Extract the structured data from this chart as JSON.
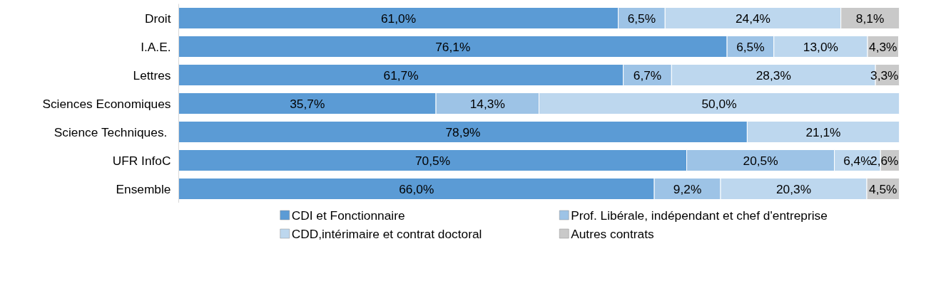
{
  "chart_data": {
    "type": "bar",
    "orientation": "horizontal",
    "stacked": true,
    "categories": [
      "Droit",
      "I.A.E.",
      "Lettres",
      "Sciences Economiques",
      "Science  Techniques.",
      "UFR InfoC",
      "Ensemble"
    ],
    "xlim": [
      0,
      100
    ],
    "tick_labels": "y",
    "grid": false,
    "legend": "bottom",
    "series": [
      {
        "name": "CDI et Fonctionnaire",
        "color": "#5b9bd5",
        "values": [
          61.0,
          76.1,
          61.7,
          35.7,
          78.9,
          70.5,
          66.0
        ],
        "value_labels": [
          "61,0%",
          "76,1%",
          "61,7%",
          "35,7%",
          "78,9%",
          "70,5%",
          "66,0%"
        ]
      },
      {
        "name": "Prof. Libérale, indépendant et chef d'entreprise",
        "color": "#9dc3e6",
        "values": [
          6.5,
          6.5,
          6.7,
          14.3,
          null,
          20.5,
          9.2
        ],
        "value_labels": [
          "6,5%",
          "6,5%",
          "6,7%",
          "14,3%",
          null,
          "20,5%",
          "9,2%"
        ]
      },
      {
        "name": "CDD,intérimaire et contrat doctoral",
        "color": "#bdd7ee",
        "values": [
          24.4,
          13.0,
          28.3,
          50.0,
          21.1,
          6.4,
          20.3
        ],
        "value_labels": [
          "24,4%",
          "13,0%",
          "28,3%",
          "50,0%",
          "21,1%",
          "6,4%",
          "20,3%"
        ]
      },
      {
        "name": "Autres contrats",
        "color": "#c9c9c9",
        "values": [
          8.1,
          4.3,
          3.3,
          null,
          null,
          2.6,
          4.5
        ],
        "value_labels": [
          "8,1%",
          "4,3%",
          "3,3%",
          null,
          null,
          "2,6%",
          "4,5%"
        ]
      }
    ]
  }
}
